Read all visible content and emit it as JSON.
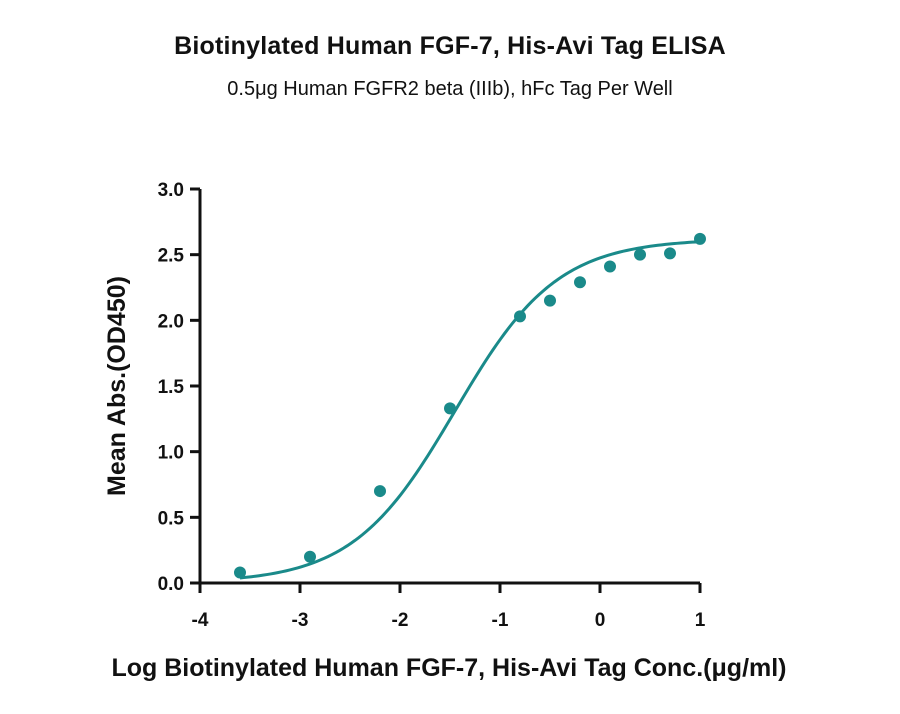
{
  "chart_data": {
    "type": "scatter",
    "title": "Biotinylated Human FGF-7, His-Avi Tag ELISA",
    "subtitle": "0.5μg Human FGFR2 beta (IIIb), hFc Tag Per Well",
    "xlabel": "Log Biotinylated Human FGF-7, His-Avi Tag Conc.(μg/ml)",
    "ylabel": "Mean Abs.(OD450)",
    "xlim": [
      -4,
      1
    ],
    "ylim": [
      0,
      3.0
    ],
    "x_ticks": [
      "-4",
      "-3",
      "-2",
      "-1",
      "0",
      "1"
    ],
    "y_ticks": [
      "0.0",
      "0.5",
      "1.0",
      "1.5",
      "2.0",
      "2.5",
      "3.0"
    ],
    "grid": false,
    "series": [
      {
        "color": "#1a8a8a",
        "points": [
          {
            "x": -3.6,
            "y": 0.08
          },
          {
            "x": -2.9,
            "y": 0.2
          },
          {
            "x": -2.2,
            "y": 0.7
          },
          {
            "x": -1.5,
            "y": 1.33
          },
          {
            "x": -0.8,
            "y": 2.03
          },
          {
            "x": -0.5,
            "y": 2.15
          },
          {
            "x": -0.2,
            "y": 2.29
          },
          {
            "x": 0.1,
            "y": 2.41
          },
          {
            "x": 0.4,
            "y": 2.5
          },
          {
            "x": 0.7,
            "y": 2.51
          },
          {
            "x": 1.0,
            "y": 2.62
          }
        ],
        "fit": {
          "bottom": 0.0,
          "top": 2.62,
          "logEC50": -1.45,
          "hill": 0.85
        }
      }
    ]
  }
}
